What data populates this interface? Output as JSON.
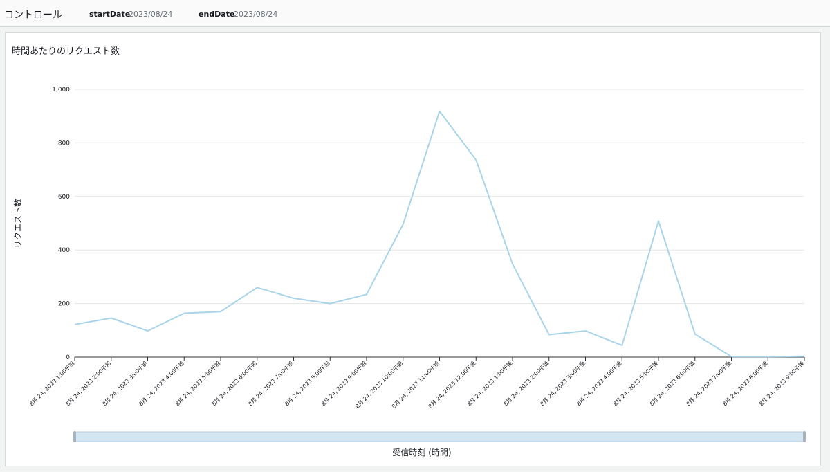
{
  "controls": {
    "title": "コントロール",
    "params": [
      {
        "label": "startDate",
        "value": "2023/08/24"
      },
      {
        "label": "endDate",
        "value": "2023/08/24"
      }
    ]
  },
  "colors": {
    "line": "#a8d4ea",
    "grid": "#e6e6e6",
    "axis": "#333333",
    "scrollbar_fill": "#d5e6f3",
    "scrollbar_border": "#b3cde3"
  },
  "chart_data": {
    "type": "line",
    "title": "時間あたりのリクエスト数",
    "xlabel": "受信時刻 (時間)",
    "ylabel": "リクエスト数",
    "ylim": [
      0,
      1000
    ],
    "yticks": [
      0,
      200,
      400,
      600,
      800,
      1000
    ],
    "ytick_labels": [
      "0",
      "200",
      "400",
      "600",
      "800",
      "1,000"
    ],
    "grid": true,
    "x": [
      "8月 24, 2023 1:00午前",
      "8月 24, 2023 2:00午前",
      "8月 24, 2023 3:00午前",
      "8月 24, 2023 4:00午前",
      "8月 24, 2023 5:00午前",
      "8月 24, 2023 6:00午前",
      "8月 24, 2023 7:00午前",
      "8月 24, 2023 8:00午前",
      "8月 24, 2023 9:00午前",
      "8月 24, 2023 10:00午前",
      "8月 24, 2023 11:00午前",
      "8月 24, 2023 12:00午後",
      "8月 24, 2023 1:00午後",
      "8月 24, 2023 2:00午後",
      "8月 24, 2023 3:00午後",
      "8月 24, 2023 4:00午後",
      "8月 24, 2023 5:00午後",
      "8月 24, 2023 6:00午後",
      "8月 24, 2023 7:00午後",
      "8月 24, 2023 8:00午後",
      "8月 24, 2023 9:00午後"
    ],
    "series": [
      {
        "values": [
          122,
          146,
          98,
          164,
          170,
          260,
          220,
          200,
          234,
          496,
          918,
          736,
          348,
          84,
          98,
          44,
          508,
          86,
          2,
          2,
          3
        ]
      }
    ]
  }
}
